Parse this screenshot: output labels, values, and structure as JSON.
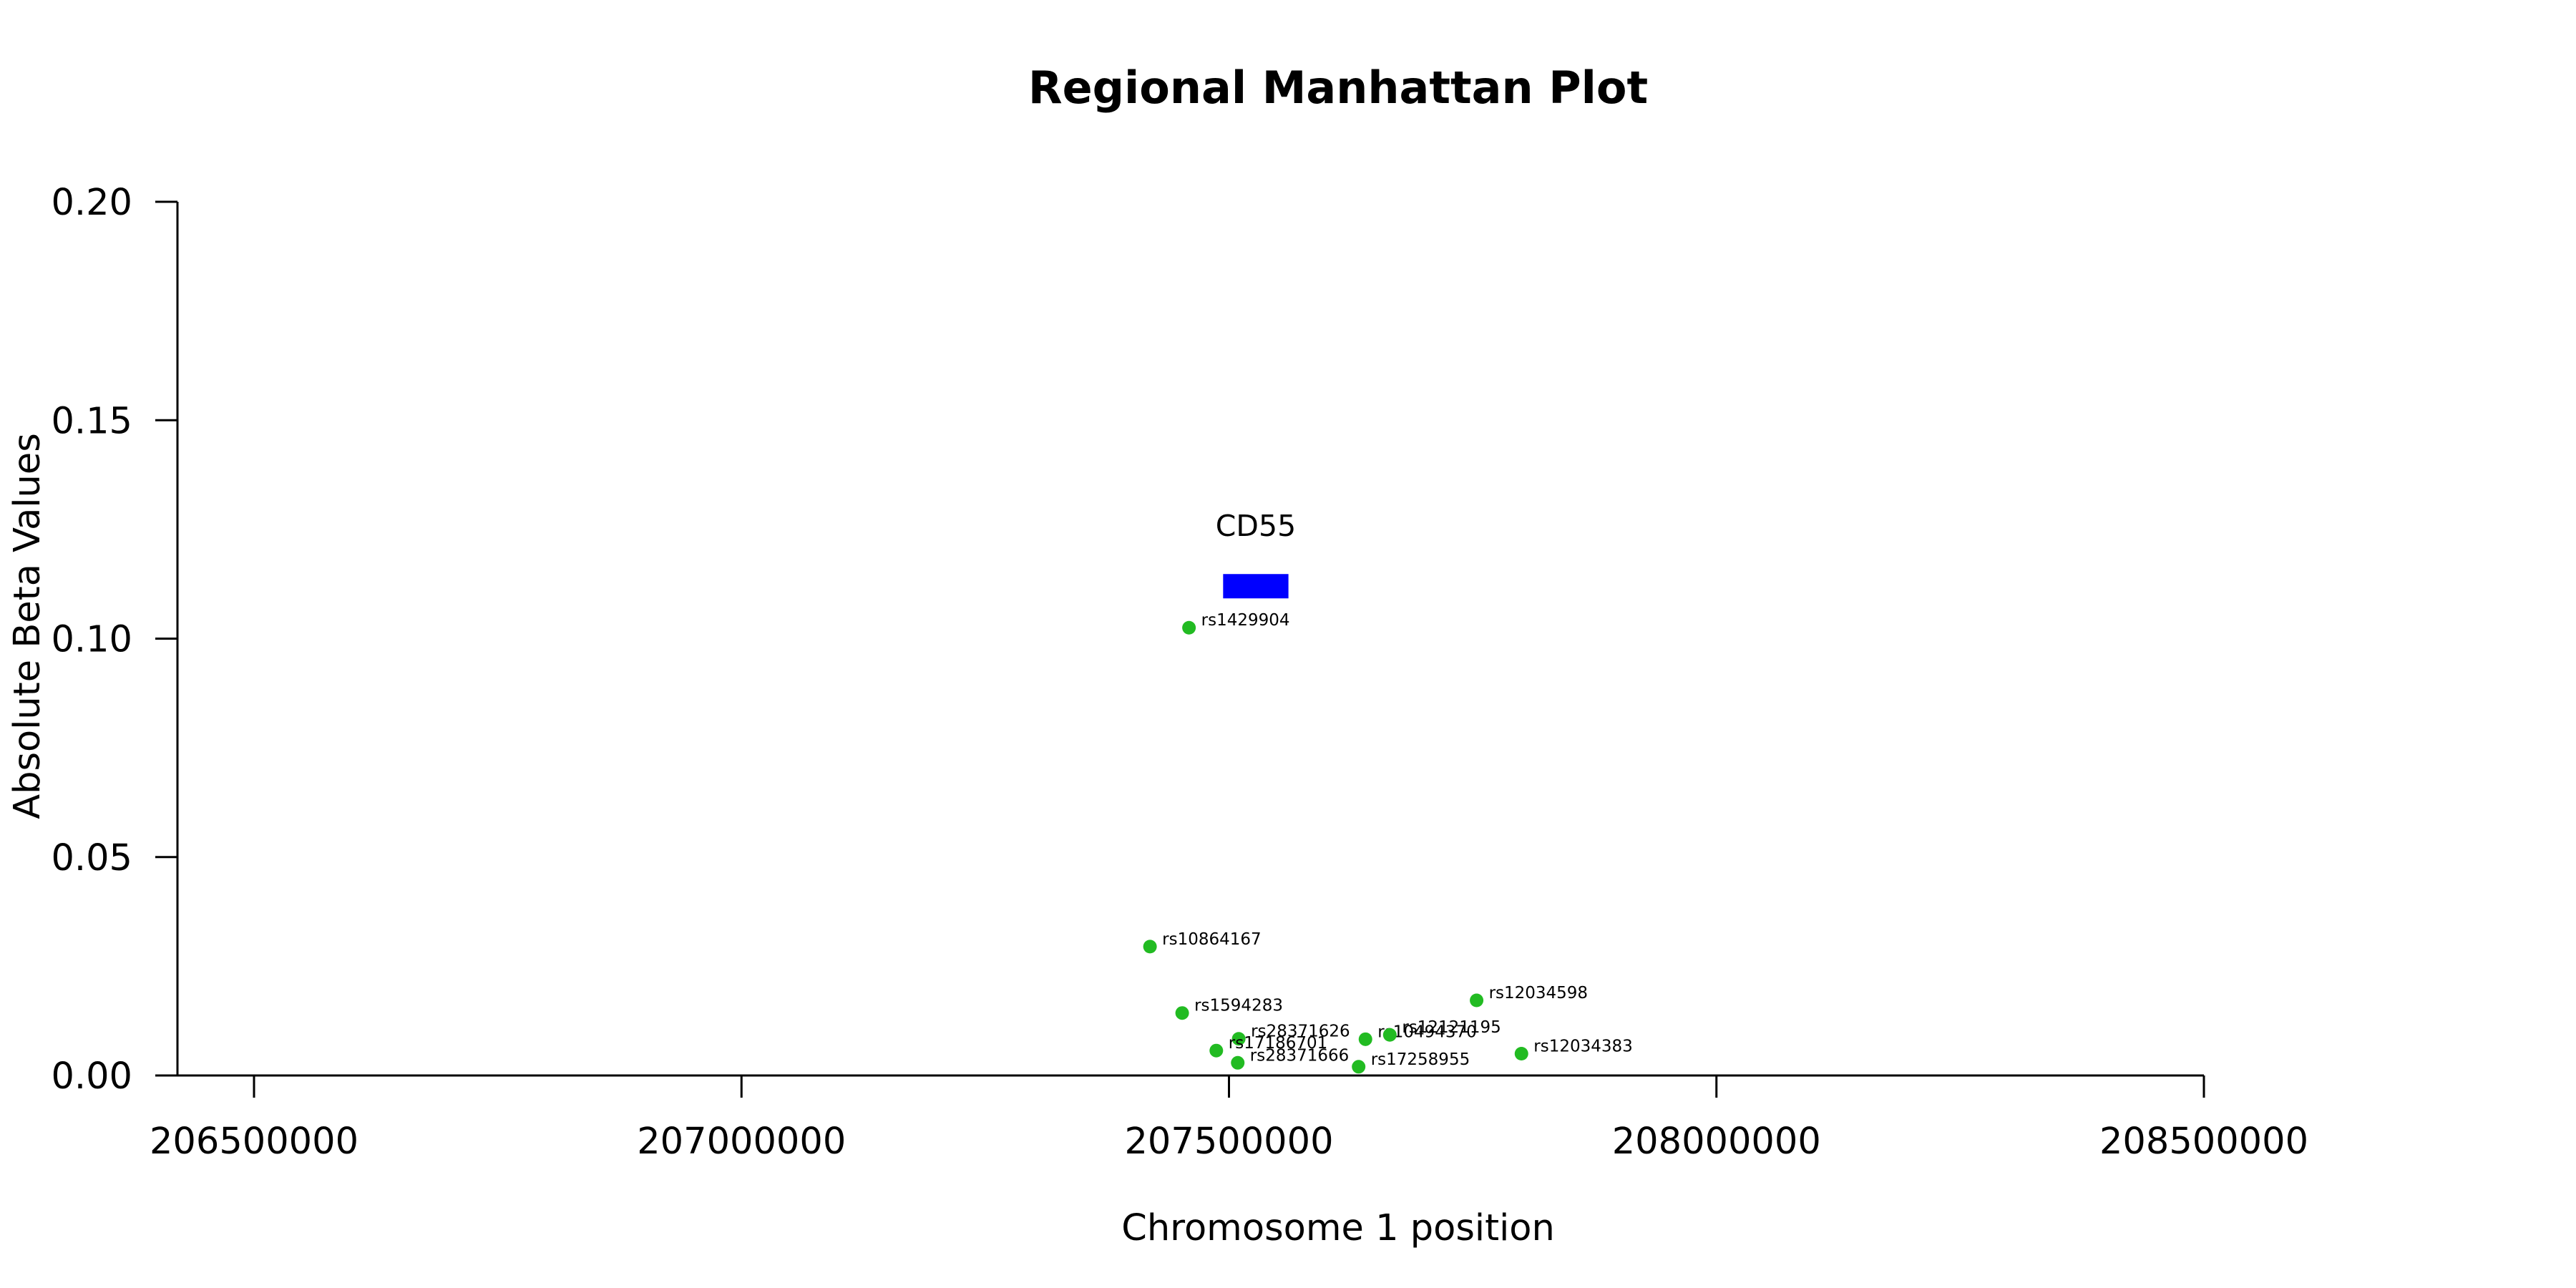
{
  "chart_data": {
    "type": "scatter",
    "title": "Regional Manhattan Plot",
    "xlabel": "Chromosome 1 position",
    "ylabel": "Absolute Beta Values",
    "xlim": [
      206500000,
      208500000
    ],
    "ylim": [
      0,
      0.2
    ],
    "x_ticks": [
      "206500000",
      "207000000",
      "207500000",
      "208000000",
      "208500000"
    ],
    "y_ticks": [
      "0.00",
      "0.05",
      "0.10",
      "0.15",
      "0.20"
    ],
    "grid": false,
    "point_color": "#22bb22",
    "gene_color": "#0000ff",
    "genes": [
      {
        "name": "CD55",
        "start": 207494000,
        "end": 207561000,
        "y": 0.112
      }
    ],
    "points": [
      {
        "label": "rs1429904",
        "x": 207459000,
        "y": 0.1025
      },
      {
        "label": "rs10864167",
        "x": 207419000,
        "y": 0.0295
      },
      {
        "label": "rs12034598",
        "x": 207754000,
        "y": 0.0172
      },
      {
        "label": "rs1594283",
        "x": 207452000,
        "y": 0.0143
      },
      {
        "label": "rs28371626",
        "x": 207510000,
        "y": 0.0084
      },
      {
        "label": "rs10494370",
        "x": 207640000,
        "y": 0.0083
      },
      {
        "label": "rs12121195",
        "x": 207665000,
        "y": 0.0093
      },
      {
        "label": "rs17186701",
        "x": 207487000,
        "y": 0.0057
      },
      {
        "label": "rs12034383",
        "x": 207800000,
        "y": 0.005
      },
      {
        "label": "rs28371666",
        "x": 207509000,
        "y": 0.0029
      },
      {
        "label": "rs17258955",
        "x": 207633000,
        "y": 0.002
      }
    ]
  }
}
